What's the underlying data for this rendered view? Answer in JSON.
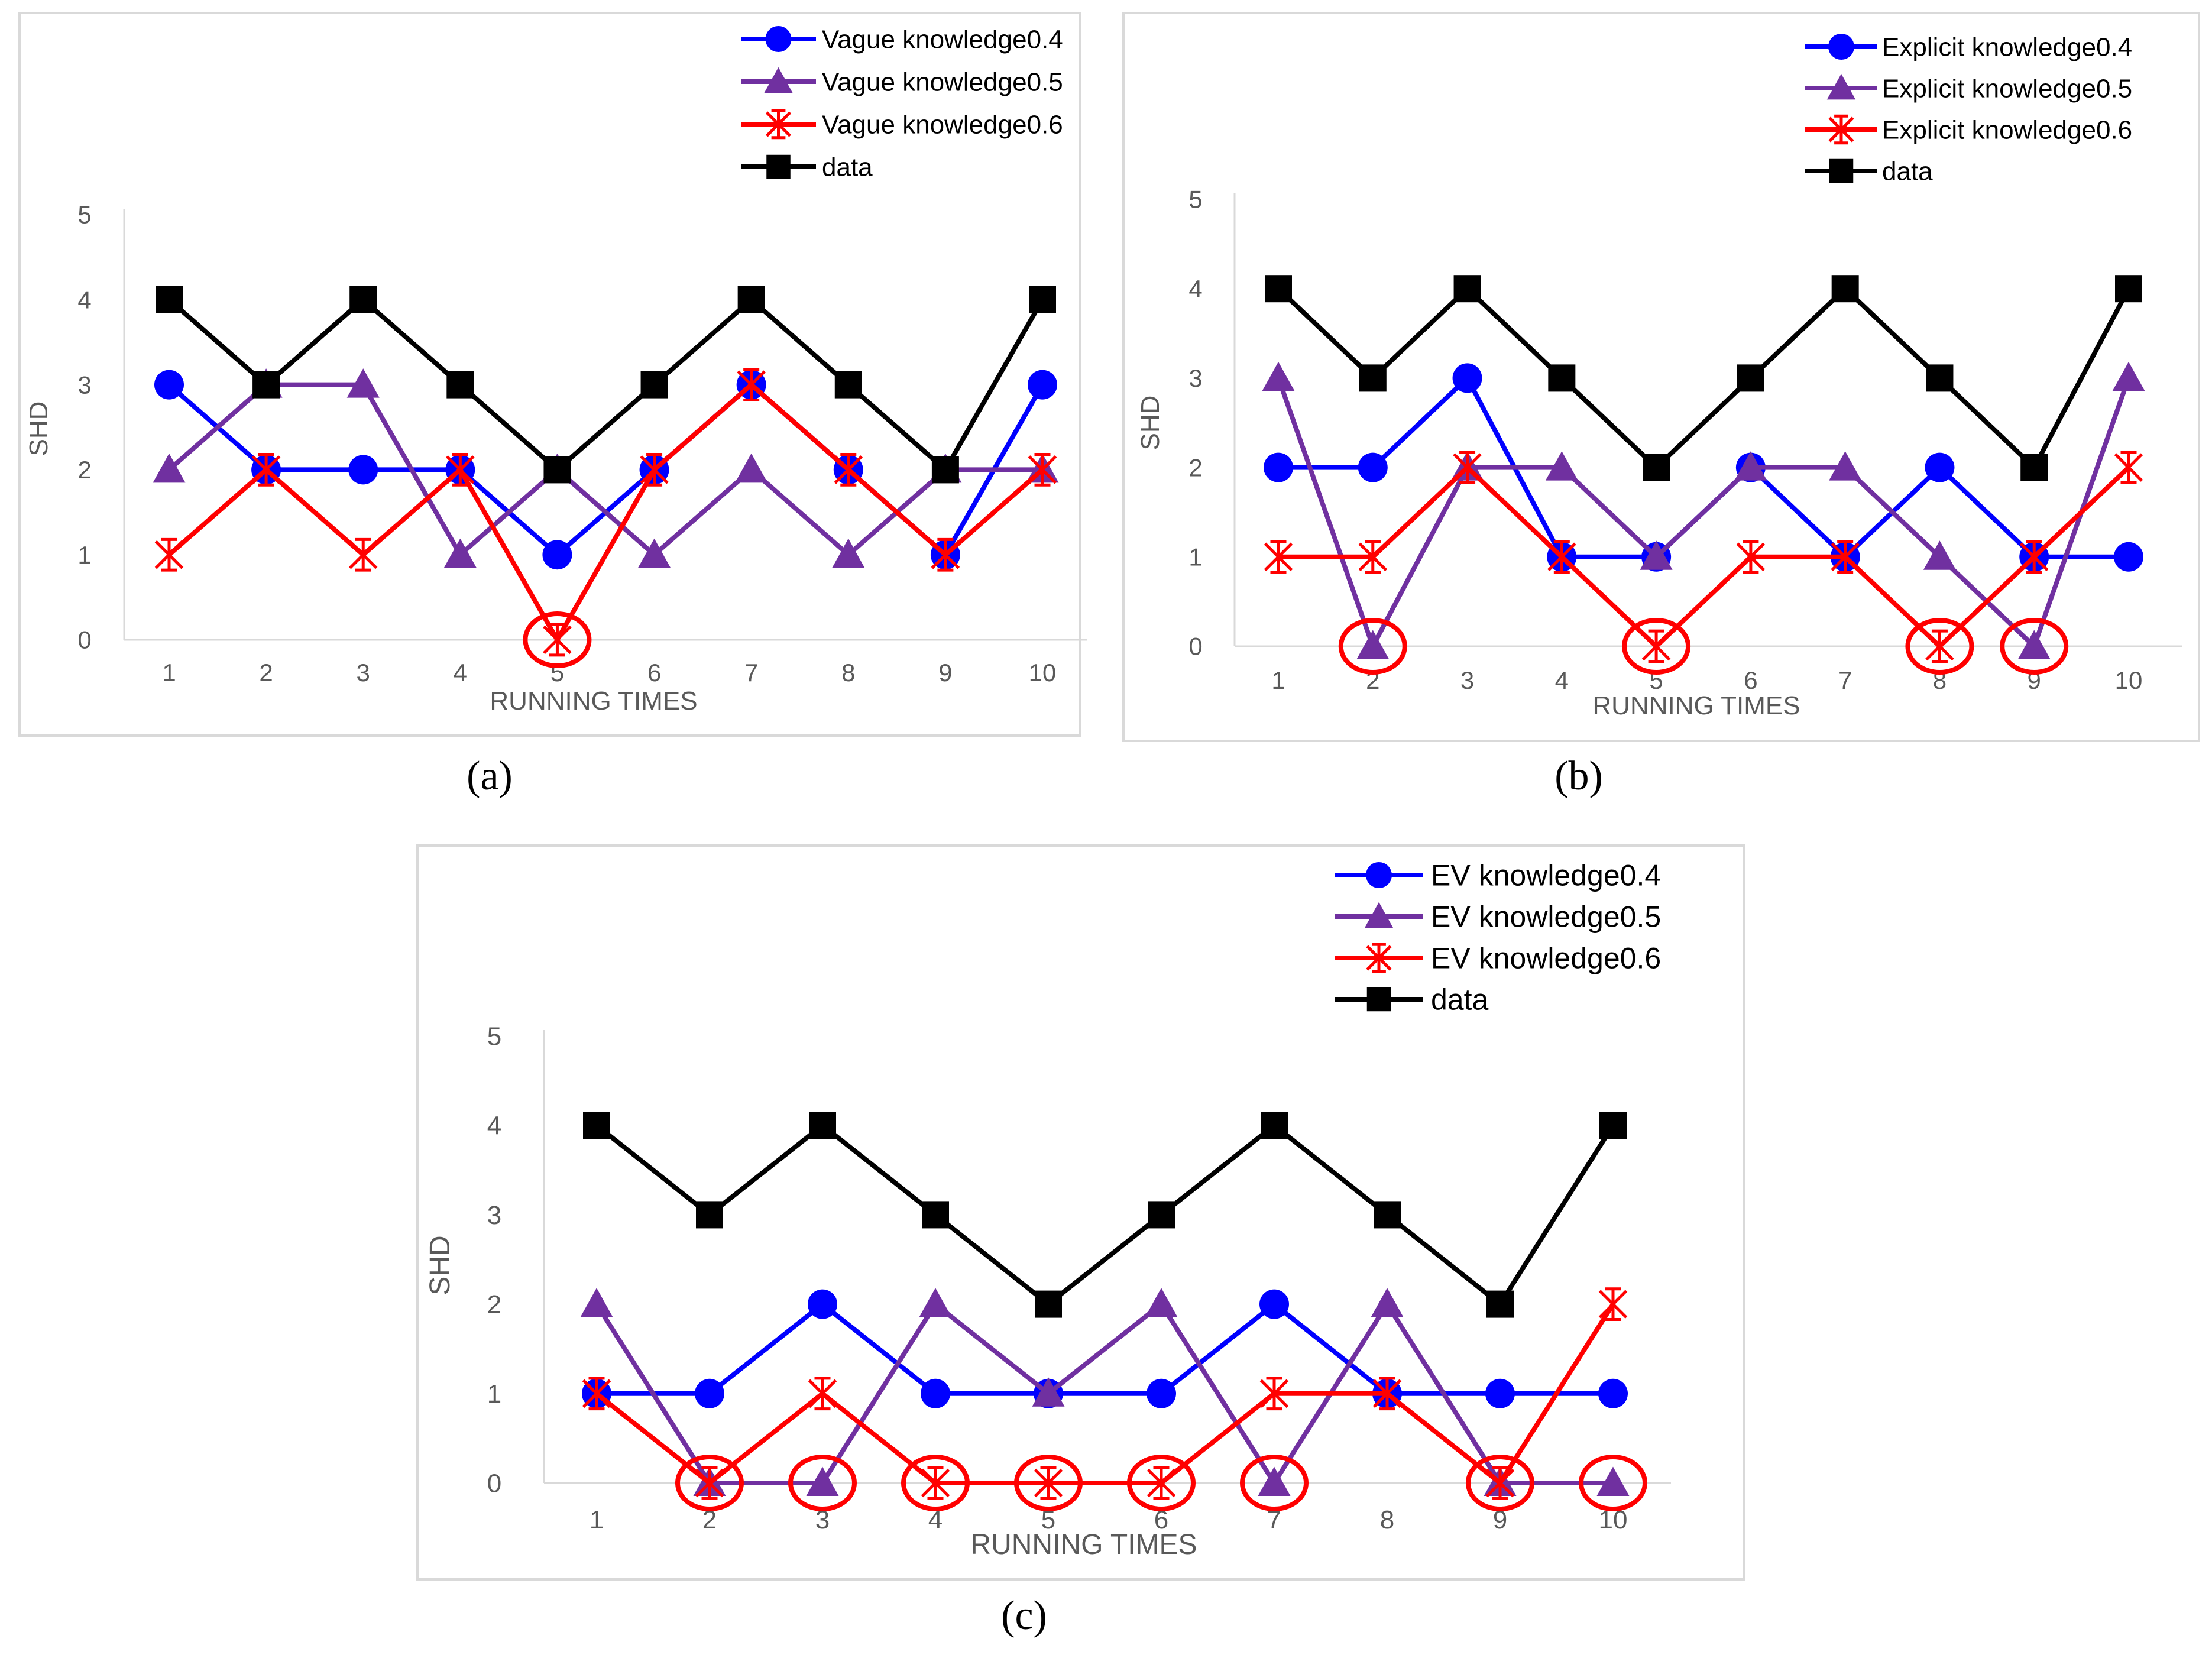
{
  "chart_data": [
    {
      "type": "line",
      "caption": "(a)",
      "xlabel": "RUNNING TIMES",
      "ylabel": "SHD",
      "ylim": [
        0,
        5
      ],
      "categories": [
        "1",
        "2",
        "3",
        "4",
        "5",
        "6",
        "7",
        "8",
        "9",
        "10"
      ],
      "yticks": [
        "0",
        "1",
        "2",
        "3",
        "4",
        "5"
      ],
      "grid": false,
      "legend_position": "top-right",
      "series": [
        {
          "name": "Vague knowledge0.4",
          "color": "#0000ff",
          "marker": "circle",
          "values": [
            3,
            2,
            2,
            2,
            1,
            2,
            3,
            2,
            1,
            3
          ]
        },
        {
          "name": "Vague knowledge0.5",
          "color": "#7030a0",
          "marker": "triangle",
          "values": [
            2,
            3,
            3,
            1,
            2,
            1,
            2,
            1,
            2,
            2
          ]
        },
        {
          "name": "Vague knowledge0.6",
          "color": "#ff0000",
          "marker": "star",
          "values": [
            1,
            2,
            1,
            2,
            0,
            2,
            3,
            2,
            1,
            2
          ]
        },
        {
          "name": "data",
          "color": "#000000",
          "marker": "square",
          "values": [
            4,
            3,
            4,
            3,
            2,
            3,
            4,
            3,
            2,
            4
          ]
        }
      ],
      "highlights": [
        [
          5,
          0
        ]
      ]
    },
    {
      "type": "line",
      "caption": "(b)",
      "xlabel": "RUNNING TIMES",
      "ylabel": "SHD",
      "ylim": [
        0,
        5
      ],
      "categories": [
        "1",
        "2",
        "3",
        "4",
        "5",
        "6",
        "7",
        "8",
        "9",
        "10"
      ],
      "yticks": [
        "0",
        "1",
        "2",
        "3",
        "4",
        "5"
      ],
      "grid": false,
      "legend_position": "top-right",
      "series": [
        {
          "name": "Explicit knowledge0.4",
          "color": "#0000ff",
          "marker": "circle",
          "values": [
            2,
            2,
            3,
            1,
            1,
            2,
            1,
            2,
            1,
            1
          ]
        },
        {
          "name": "Explicit knowledge0.5",
          "color": "#7030a0",
          "marker": "triangle",
          "values": [
            3,
            0,
            2,
            2,
            1,
            2,
            2,
            1,
            0,
            3
          ]
        },
        {
          "name": "Explicit knowledge0.6",
          "color": "#ff0000",
          "marker": "star",
          "values": [
            1,
            1,
            2,
            1,
            0,
            1,
            1,
            0,
            1,
            2
          ]
        },
        {
          "name": "data",
          "color": "#000000",
          "marker": "square",
          "values": [
            4,
            3,
            4,
            3,
            2,
            3,
            4,
            3,
            2,
            4
          ]
        }
      ],
      "highlights": [
        [
          2,
          0
        ],
        [
          5,
          0
        ],
        [
          8,
          0
        ],
        [
          9,
          0
        ]
      ]
    },
    {
      "type": "line",
      "caption": "(c)",
      "xlabel": "RUNNING TIMES",
      "ylabel": "SHD",
      "ylim": [
        0,
        5
      ],
      "categories": [
        "1",
        "2",
        "3",
        "4",
        "5",
        "6",
        "7",
        "8",
        "9",
        "10"
      ],
      "yticks": [
        "0",
        "1",
        "2",
        "3",
        "4",
        "5"
      ],
      "grid": false,
      "legend_position": "top-right",
      "series": [
        {
          "name": "EV knowledge0.4",
          "color": "#0000ff",
          "marker": "circle",
          "values": [
            1,
            1,
            2,
            1,
            1,
            1,
            2,
            1,
            1,
            1
          ]
        },
        {
          "name": "EV knowledge0.5",
          "color": "#7030a0",
          "marker": "triangle",
          "values": [
            2,
            0,
            0,
            2,
            1,
            2,
            0,
            2,
            0,
            0
          ]
        },
        {
          "name": "EV knowledge0.6",
          "color": "#ff0000",
          "marker": "star",
          "values": [
            1,
            0,
            1,
            0,
            0,
            0,
            1,
            1,
            0,
            2
          ]
        },
        {
          "name": "data",
          "color": "#000000",
          "marker": "square",
          "values": [
            4,
            3,
            4,
            3,
            2,
            3,
            4,
            3,
            2,
            4
          ]
        }
      ],
      "highlights": [
        [
          2,
          0
        ],
        [
          3,
          0
        ],
        [
          4,
          0
        ],
        [
          5,
          0
        ],
        [
          6,
          0
        ],
        [
          7,
          0
        ],
        [
          9,
          0
        ],
        [
          10,
          0
        ]
      ]
    }
  ]
}
